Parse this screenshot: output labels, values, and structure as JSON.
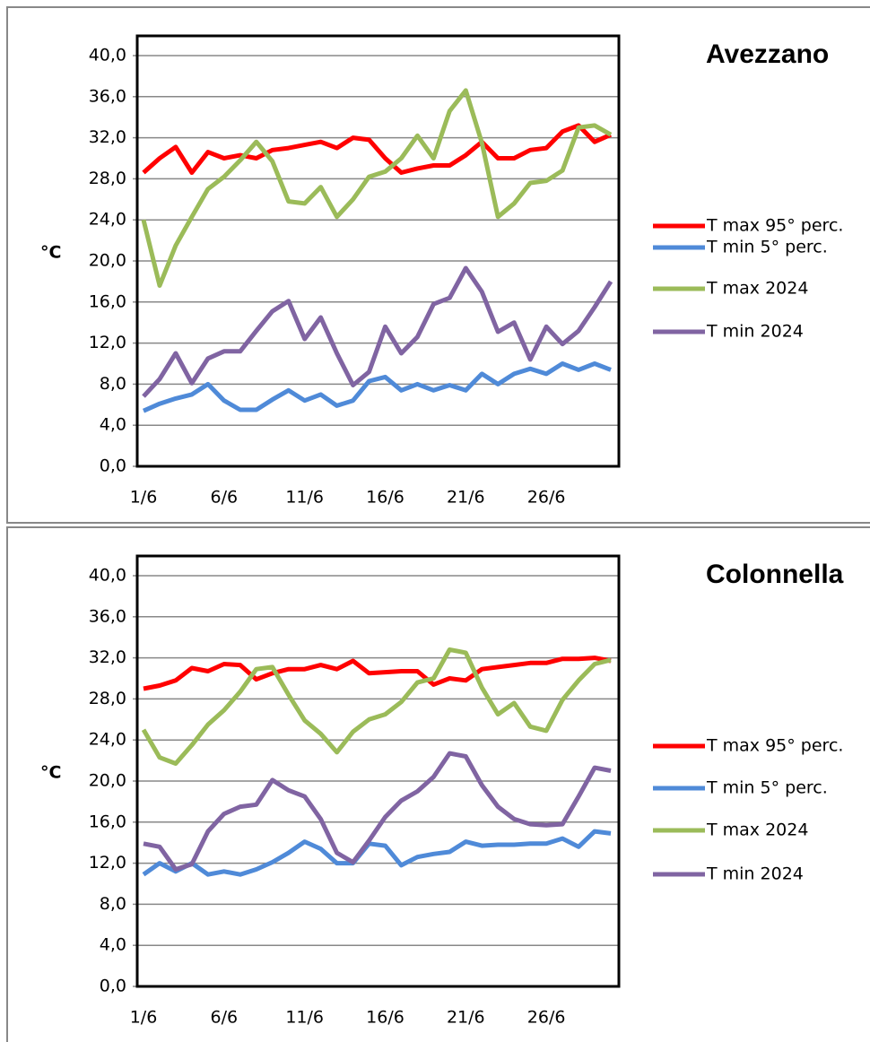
{
  "chart_data": [
    {
      "type": "line",
      "title": "Avezzano",
      "ylabel": "°C",
      "legend": "right",
      "grid": true,
      "categories": [
        "1/6",
        null,
        null,
        null,
        null,
        "6/6",
        null,
        null,
        null,
        null,
        "11/6",
        null,
        null,
        null,
        null,
        "16/6",
        null,
        null,
        null,
        null,
        "21/6",
        null,
        null,
        null,
        null,
        "26/6",
        null,
        null,
        null,
        null
      ],
      "ylim": [
        0,
        40
      ],
      "yticks": [
        {
          "value": 0,
          "label": "0,0"
        },
        {
          "value": 4,
          "label": "4,0"
        },
        {
          "value": 8,
          "label": "8,0"
        },
        {
          "value": 12,
          "label": "12,0"
        },
        {
          "value": 16,
          "label": "16,0"
        },
        {
          "value": 20,
          "label": "20,0"
        },
        {
          "value": 24,
          "label": "24,0"
        },
        {
          "value": 28,
          "label": "28,0"
        },
        {
          "value": 32,
          "label": "32,0"
        },
        {
          "value": 36,
          "label": "36,0"
        },
        {
          "value": 40,
          "label": "40,0"
        }
      ],
      "series": [
        {
          "name": "T max 95° perc.",
          "color": "#ff0000",
          "values": [
            28.6,
            30,
            31.1,
            28.6,
            30.6,
            30,
            30.3,
            30,
            30.8,
            31,
            31.3,
            31.6,
            31,
            32,
            31.8,
            30,
            28.6,
            29,
            29.3,
            29.3,
            30.3,
            31.6,
            30,
            30,
            30.8,
            31,
            32.6,
            33.2,
            31.6,
            32.3
          ]
        },
        {
          "name": "T min 5° perc.",
          "color": "#4f8ad8",
          "values": [
            5.4,
            6.1,
            6.6,
            7,
            8,
            6.4,
            5.5,
            5.5,
            6.5,
            7.4,
            6.4,
            7,
            5.9,
            6.4,
            8.3,
            8.7,
            7.4,
            8,
            7.4,
            7.9,
            7.4,
            9,
            8,
            9,
            9.5,
            9,
            10,
            9.4,
            10,
            9.4
          ]
        },
        {
          "name": "T max 2024",
          "color": "#9bbb59",
          "values": [
            24,
            17.6,
            21.5,
            24.3,
            27,
            28.2,
            29.8,
            31.6,
            29.7,
            25.8,
            25.6,
            27.2,
            24.3,
            26,
            28.2,
            28.7,
            30,
            32.2,
            30,
            34.6,
            36.6,
            31.5,
            24.3,
            25.6,
            27.6,
            27.8,
            28.8,
            33,
            33.2,
            32.3
          ]
        },
        {
          "name": "T min 2024",
          "color": "#8064a2",
          "values": [
            6.8,
            8.5,
            11,
            8.1,
            10.5,
            11.2,
            11.2,
            13.2,
            15.1,
            16.1,
            12.4,
            14.5,
            11,
            7.9,
            9.2,
            13.6,
            11,
            12.6,
            15.8,
            16.4,
            19.3,
            17,
            13.1,
            14,
            10.4,
            13.6,
            11.9,
            13.2,
            15.5,
            18
          ]
        }
      ]
    },
    {
      "type": "line",
      "title": "Colonnella",
      "ylabel": "°C",
      "legend": "right",
      "grid": true,
      "categories": [
        "1/6",
        null,
        null,
        null,
        null,
        "6/6",
        null,
        null,
        null,
        null,
        "11/6",
        null,
        null,
        null,
        null,
        "16/6",
        null,
        null,
        null,
        null,
        "21/6",
        null,
        null,
        null,
        null,
        "26/6",
        null,
        null,
        null,
        null
      ],
      "ylim": [
        0,
        40
      ],
      "yticks": [
        {
          "value": 0,
          "label": "0,0"
        },
        {
          "value": 4,
          "label": "4,0"
        },
        {
          "value": 8,
          "label": "8,0"
        },
        {
          "value": 12,
          "label": "12,0"
        },
        {
          "value": 16,
          "label": "16,0"
        },
        {
          "value": 20,
          "label": "20,0"
        },
        {
          "value": 24,
          "label": "24,0"
        },
        {
          "value": 28,
          "label": "28,0"
        },
        {
          "value": 32,
          "label": "32,0"
        },
        {
          "value": 36,
          "label": "36,0"
        },
        {
          "value": 40,
          "label": "40,0"
        }
      ],
      "series": [
        {
          "name": "T max 95° perc.",
          "color": "#ff0000",
          "values": [
            29,
            29.3,
            29.8,
            31,
            30.7,
            31.4,
            31.3,
            29.9,
            30.5,
            30.9,
            30.9,
            31.3,
            30.9,
            31.7,
            30.5,
            30.6,
            30.7,
            30.7,
            29.4,
            30,
            29.8,
            30.9,
            31.1,
            31.3,
            31.5,
            31.5,
            31.9,
            31.9,
            32,
            31.7
          ]
        },
        {
          "name": "T min 5° perc.",
          "color": "#4f8ad8",
          "values": [
            10.9,
            12,
            11.2,
            12,
            10.9,
            11.2,
            10.9,
            11.4,
            12.1,
            13,
            14.1,
            13.4,
            12,
            12,
            13.9,
            13.7,
            11.8,
            12.6,
            12.9,
            13.1,
            14.1,
            13.7,
            13.8,
            13.8,
            13.9,
            13.9,
            14.4,
            13.6,
            15.1,
            14.9
          ]
        },
        {
          "name": "T max 2024",
          "color": "#9bbb59",
          "values": [
            25,
            22.3,
            21.7,
            23.5,
            25.5,
            26.9,
            28.7,
            30.9,
            31.1,
            28.4,
            25.9,
            24.6,
            22.8,
            24.8,
            26,
            26.5,
            27.7,
            29.6,
            30,
            32.8,
            32.5,
            29.1,
            26.5,
            27.6,
            25.3,
            24.9,
            27.9,
            29.8,
            31.4,
            31.8
          ]
        },
        {
          "name": "T min 2024",
          "color": "#8064a2",
          "values": [
            13.9,
            13.6,
            11.4,
            11.9,
            15.1,
            16.8,
            17.5,
            17.7,
            20.1,
            19.1,
            18.5,
            16.3,
            13,
            12.1,
            14.2,
            16.5,
            18.1,
            19,
            20.4,
            22.7,
            22.4,
            19.6,
            17.5,
            16.3,
            15.8,
            15.7,
            15.8,
            18.5,
            21.3,
            21
          ]
        }
      ]
    }
  ]
}
